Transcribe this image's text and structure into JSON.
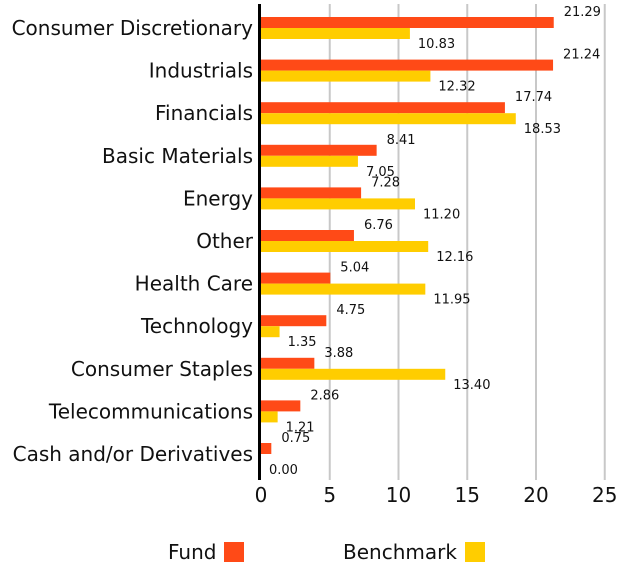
{
  "chart_data": {
    "type": "bar",
    "orientation": "horizontal",
    "categories": [
      "Consumer Discretionary",
      "Industrials",
      "Financials",
      "Basic Materials",
      "Energy",
      "Other",
      "Health Care",
      "Technology",
      "Consumer Staples",
      "Telecommunications",
      "Cash and/or Derivatives"
    ],
    "series": [
      {
        "name": "Fund",
        "color": "#FF4A17",
        "values": [
          21.29,
          21.24,
          17.74,
          8.41,
          7.28,
          6.76,
          5.04,
          4.75,
          3.88,
          2.86,
          0.75
        ],
        "labels": [
          "21.29",
          "21.24",
          "17.74",
          "8.41",
          "7.28",
          "6.76",
          "5.04",
          "4.75",
          "3.88",
          "2.86",
          "0.75"
        ]
      },
      {
        "name": "Benchmark",
        "color": "#FFCD00",
        "values": [
          10.83,
          12.32,
          18.53,
          7.05,
          11.2,
          12.16,
          11.95,
          1.35,
          13.4,
          1.21,
          0.0
        ],
        "labels": [
          "10.83",
          "12.32",
          "18.53",
          "7.05",
          "11.20",
          "12.16",
          "11.95",
          "1.35",
          "13.40",
          "1.21",
          "0.00"
        ]
      }
    ],
    "x_ticks": [
      "0",
      "5",
      "10",
      "15",
      "20",
      "25"
    ],
    "xlim": [
      0,
      25
    ],
    "grid": "vertical",
    "legend_position": "bottom",
    "gridline_color": "#C8C8C8",
    "axis_color": "#000000"
  }
}
